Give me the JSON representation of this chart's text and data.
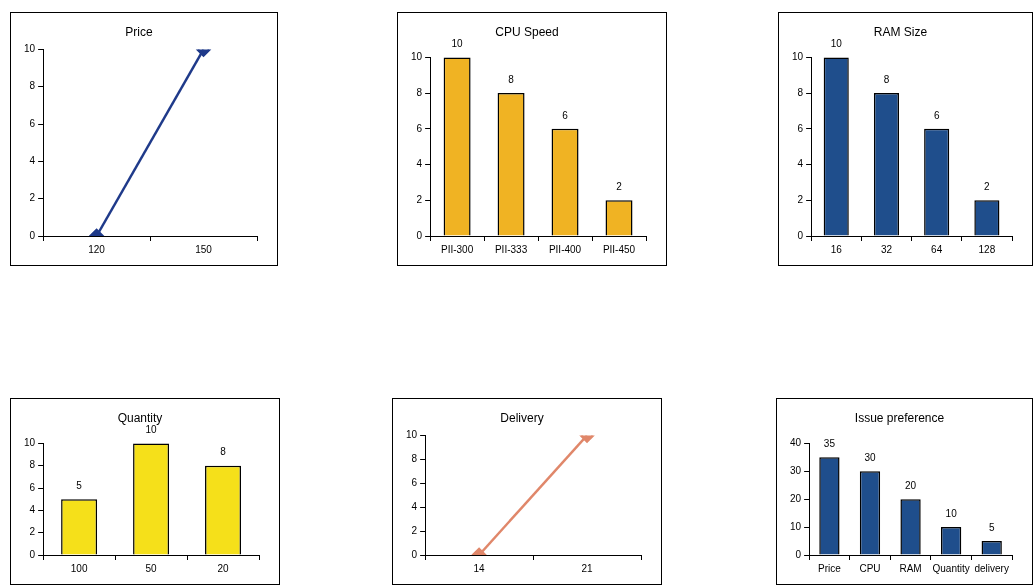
{
  "chart_data": [
    {
      "type": "line",
      "title": "Price",
      "categories": [
        "120",
        "150"
      ],
      "values": [
        0,
        10
      ],
      "color": "#1f3a8a",
      "marker": "diamond",
      "ylim": [
        0,
        10
      ],
      "yticks": [
        0,
        2,
        4,
        6,
        8,
        10
      ]
    },
    {
      "type": "bar",
      "title": "CPU Speed",
      "categories": [
        "PII-300",
        "PII-333",
        "PII-400",
        "PII-450"
      ],
      "values": [
        10,
        8,
        6,
        2
      ],
      "color": "#f0b323",
      "ylim": [
        0,
        10
      ],
      "yticks": [
        0,
        2,
        4,
        6,
        8,
        10
      ],
      "data_labels": true
    },
    {
      "type": "bar",
      "title": "RAM Size",
      "categories": [
        "16",
        "32",
        "64",
        "128"
      ],
      "values": [
        10,
        8,
        6,
        2
      ],
      "color": "#1f4e8c",
      "ylim": [
        0,
        10
      ],
      "yticks": [
        0,
        2,
        4,
        6,
        8,
        10
      ],
      "data_labels": true
    },
    {
      "type": "bar",
      "title": "Quantity",
      "categories": [
        "100",
        "50",
        "20"
      ],
      "values": [
        5,
        10,
        8
      ],
      "color": "#f5e01a",
      "ylim": [
        0,
        10
      ],
      "yticks": [
        0,
        2,
        4,
        6,
        8,
        10
      ],
      "data_labels": true
    },
    {
      "type": "line",
      "title": "Delivery",
      "categories": [
        "14",
        "21"
      ],
      "values": [
        0,
        10
      ],
      "color": "#e0876a",
      "marker": "diamond",
      "ylim": [
        0,
        10
      ],
      "yticks": [
        0,
        2,
        4,
        6,
        8,
        10
      ]
    },
    {
      "type": "bar",
      "title": "Issue preference",
      "categories": [
        "Price",
        "CPU",
        "RAM",
        "Quantity",
        "delivery"
      ],
      "values": [
        35,
        30,
        20,
        10,
        5
      ],
      "color": "#1f4e8c",
      "ylim": [
        0,
        40
      ],
      "yticks": [
        0,
        10,
        20,
        30,
        40
      ],
      "data_labels": true
    }
  ]
}
